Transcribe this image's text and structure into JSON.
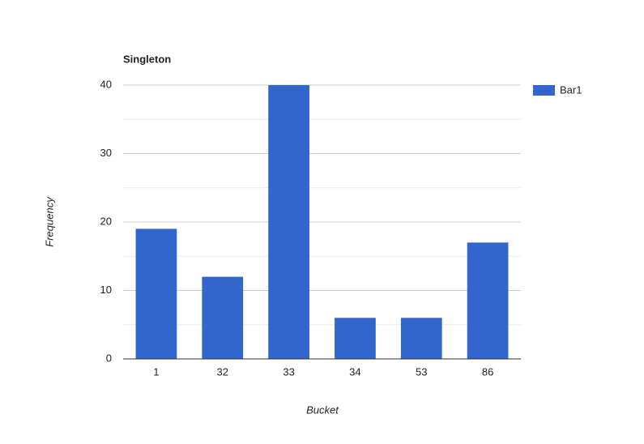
{
  "chart_data": {
    "type": "bar",
    "title": "Singleton",
    "x_label": "Bucket",
    "y_label": "Frequency",
    "categories": [
      "1",
      "32",
      "33",
      "34",
      "53",
      "86"
    ],
    "series": [
      {
        "name": "Bar1",
        "color": "#3366cc",
        "values": [
          19,
          12,
          40,
          6,
          6,
          17
        ]
      }
    ],
    "ylim": [
      0,
      40
    ],
    "yticks": [
      0,
      10,
      20,
      30,
      40
    ],
    "minor_yticks": [
      5,
      15,
      25,
      35
    ],
    "grid": true,
    "legend": "right"
  }
}
